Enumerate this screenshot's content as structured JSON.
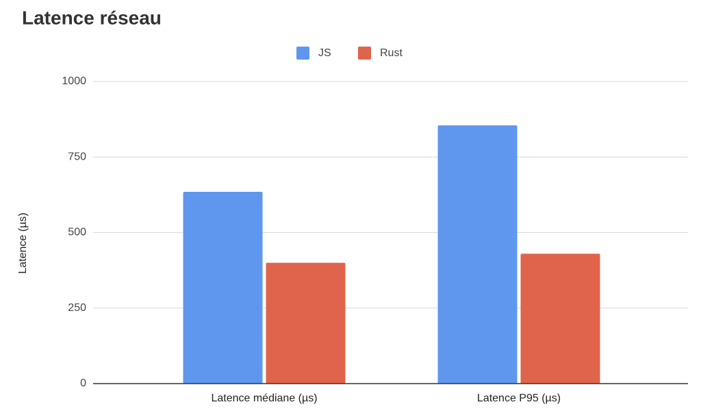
{
  "chart_data": {
    "type": "bar",
    "title": "Latence réseau",
    "y_label": "Latence (µs)",
    "categories": [
      "Latence médiane (µs)",
      "Latence P95 (µs)"
    ],
    "series": [
      {
        "name": "JS",
        "color": "#5f97ef",
        "values": [
          635,
          855
        ]
      },
      {
        "name": "Rust",
        "color": "#e0644b",
        "values": [
          400,
          430
        ]
      }
    ],
    "ylim": [
      0,
      1000
    ],
    "yticks": [
      0,
      250,
      500,
      750,
      1000
    ],
    "grid": true,
    "legend": "top"
  }
}
